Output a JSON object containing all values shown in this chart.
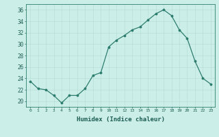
{
  "x": [
    0,
    1,
    2,
    3,
    4,
    5,
    6,
    7,
    8,
    9,
    10,
    11,
    12,
    13,
    14,
    15,
    16,
    17,
    18,
    19,
    20,
    21,
    22,
    23
  ],
  "y": [
    23.5,
    22.2,
    22.0,
    21.0,
    19.7,
    21.0,
    21.0,
    22.2,
    24.5,
    25.0,
    29.5,
    30.7,
    31.5,
    32.5,
    33.0,
    34.2,
    35.3,
    36.0,
    35.0,
    32.5,
    31.0,
    27.0,
    24.0,
    23.0
  ],
  "xlabel": "Humidex (Indice chaleur)",
  "ylim": [
    19,
    37
  ],
  "yticks": [
    20,
    22,
    24,
    26,
    28,
    30,
    32,
    34,
    36
  ],
  "xticks": [
    0,
    1,
    2,
    3,
    4,
    5,
    6,
    7,
    8,
    9,
    10,
    11,
    12,
    13,
    14,
    15,
    16,
    17,
    18,
    19,
    20,
    21,
    22,
    23
  ],
  "line_color": "#2d7d6e",
  "marker_color": "#2d7d6e",
  "bg_color": "#cceee8",
  "grid_color": "#b8ddd8",
  "axis_color": "#2d7d6e",
  "text_color": "#1a5c52"
}
